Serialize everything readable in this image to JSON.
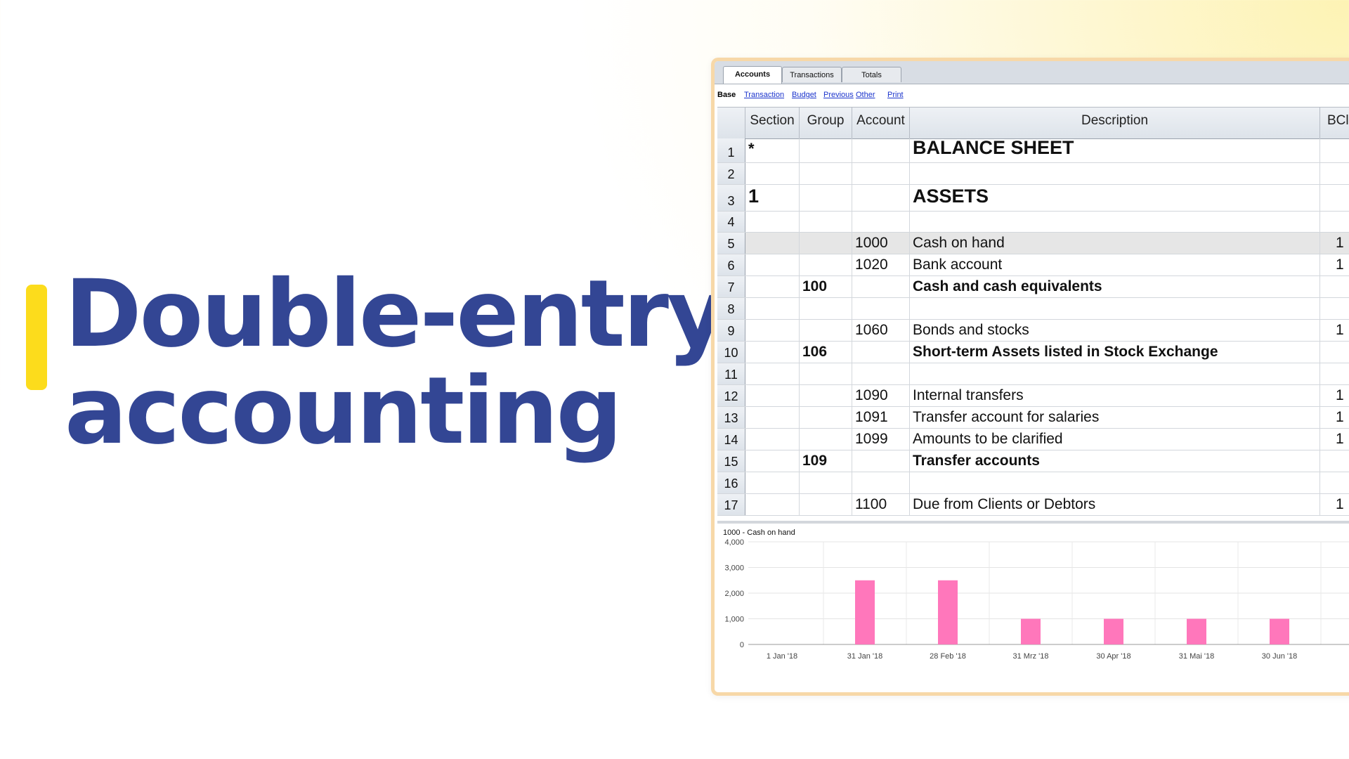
{
  "headline": {
    "line1": "Double-entry",
    "line2": "accounting"
  },
  "tabs": [
    {
      "label": "Accounts",
      "active": true
    },
    {
      "label": "Transactions",
      "active": false
    },
    {
      "label": "Totals",
      "active": false
    }
  ],
  "views": {
    "base": "Base",
    "links": [
      "Transaction",
      "Budget",
      "Previous",
      "Other",
      "Print"
    ]
  },
  "table": {
    "columns": [
      "Section",
      "Group",
      "Account",
      "Description",
      "BCla"
    ],
    "rows": [
      {
        "num": "1",
        "section": "*",
        "group": "",
        "account": "",
        "description": "BALANCE SHEET",
        "bclass": ""
      },
      {
        "num": "2",
        "section": "",
        "group": "",
        "account": "",
        "description": "",
        "bclass": ""
      },
      {
        "num": "3",
        "section": "1",
        "group": "",
        "account": "",
        "description": "ASSETS",
        "bclass": ""
      },
      {
        "num": "4",
        "section": "",
        "group": "",
        "account": "",
        "description": "",
        "bclass": ""
      },
      {
        "num": "5",
        "section": "",
        "group": "",
        "account": "1000",
        "description": "Cash on hand",
        "bclass": "1"
      },
      {
        "num": "6",
        "section": "",
        "group": "",
        "account": "1020",
        "description": "Bank account",
        "bclass": "1"
      },
      {
        "num": "7",
        "section": "",
        "group": "100",
        "account": "",
        "description": "Cash and cash equivalents",
        "bclass": ""
      },
      {
        "num": "8",
        "section": "",
        "group": "",
        "account": "",
        "description": "",
        "bclass": ""
      },
      {
        "num": "9",
        "section": "",
        "group": "",
        "account": "1060",
        "description": "Bonds and stocks",
        "bclass": "1"
      },
      {
        "num": "10",
        "section": "",
        "group": "106",
        "account": "",
        "description": "Short-term Assets listed in Stock Exchange",
        "bclass": ""
      },
      {
        "num": "11",
        "section": "",
        "group": "",
        "account": "",
        "description": "",
        "bclass": ""
      },
      {
        "num": "12",
        "section": "",
        "group": "",
        "account": "1090",
        "description": "Internal transfers",
        "bclass": "1"
      },
      {
        "num": "13",
        "section": "",
        "group": "",
        "account": "1091",
        "description": "Transfer account for salaries",
        "bclass": "1"
      },
      {
        "num": "14",
        "section": "",
        "group": "",
        "account": "1099",
        "description": "Amounts to be clarified",
        "bclass": "1"
      },
      {
        "num": "15",
        "section": "",
        "group": "109",
        "account": "",
        "description": "Transfer accounts",
        "bclass": ""
      },
      {
        "num": "16",
        "section": "",
        "group": "",
        "account": "",
        "description": "",
        "bclass": ""
      },
      {
        "num": "17",
        "section": "",
        "group": "",
        "account": "1100",
        "description": "Due from Clients or Debtors",
        "bclass": "1"
      }
    ]
  },
  "chart_data": {
    "type": "bar",
    "title": "1000 - Cash on hand",
    "categories": [
      "1 Jan '18",
      "31 Jan '18",
      "28 Feb '18",
      "31 Mrz '18",
      "30 Apr '18",
      "31 Mai '18",
      "30 Jun '18"
    ],
    "values": [
      0,
      2500,
      2500,
      1000,
      1000,
      1000,
      1000
    ],
    "yticks": [
      "0",
      "1,000",
      "2,000",
      "3,000",
      "4,000"
    ],
    "ylim": [
      0,
      4000
    ],
    "bar_color": "#ff77bb",
    "grid": true
  }
}
